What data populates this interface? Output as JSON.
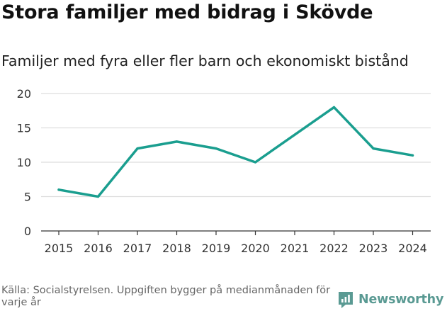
{
  "title": "Stora familjer med bidrag i Skövde",
  "subtitle": "Familjer med fyra eller fler barn och ekonomiskt bistånd",
  "source": "Källa: Socialstyrelsen. Uppgiften bygger på medianmånaden för varje år",
  "brand": "Newsworthy",
  "colors": {
    "line": "#1a9e8f",
    "grid": "#dddddd",
    "axis": "#333333",
    "brand": "#5a9a93"
  },
  "chart_data": {
    "type": "line",
    "title": "Stora familjer med bidrag i Skövde",
    "subtitle": "Familjer med fyra eller fler barn och ekonomiskt bistånd",
    "xlabel": "",
    "ylabel": "",
    "categories": [
      "2015",
      "2016",
      "2017",
      "2018",
      "2019",
      "2020",
      "2021",
      "2022",
      "2023",
      "2024"
    ],
    "series": [
      {
        "name": "Familjer",
        "values": [
          6,
          5,
          12,
          13,
          12,
          10,
          14,
          18,
          12,
          11
        ]
      }
    ],
    "ylim": [
      0,
      20
    ],
    "yticks": [
      0,
      5,
      10,
      15,
      20
    ],
    "grid": true,
    "legend": "none"
  }
}
